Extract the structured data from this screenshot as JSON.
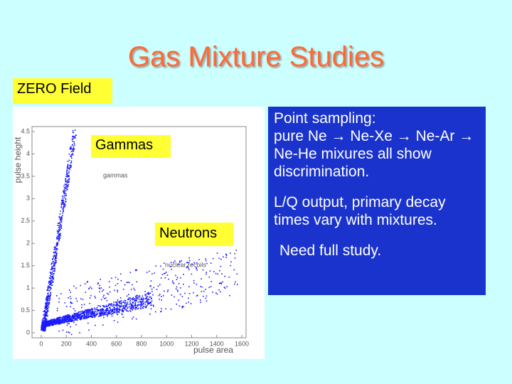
{
  "title": "Gas Mixture Studies",
  "labels": {
    "field": "ZERO Field",
    "gammas": "Gammas",
    "neutrons": "Neutrons"
  },
  "plot": {
    "y_label": "pulse height",
    "x_label": "pulse area",
    "annotations": [
      "gammas",
      "nuclear recoils"
    ],
    "xlim": [
      0,
      1600
    ],
    "xticks": [
      0,
      200,
      400,
      600,
      800,
      1000,
      1200,
      1400,
      1600
    ],
    "ylim": [
      0,
      4.5
    ],
    "yticks": [
      0,
      0.5,
      1,
      1.5,
      2,
      2.5,
      3,
      3.5,
      4,
      4.5
    ]
  },
  "notes": [
    "Point sampling:",
    "pure Ne → Ne-Xe → Ne-Ar → Ne-He mixures all show discrimination.",
    "L/Q output, primary decay times vary with mixtures.",
    "Need full study."
  ]
}
